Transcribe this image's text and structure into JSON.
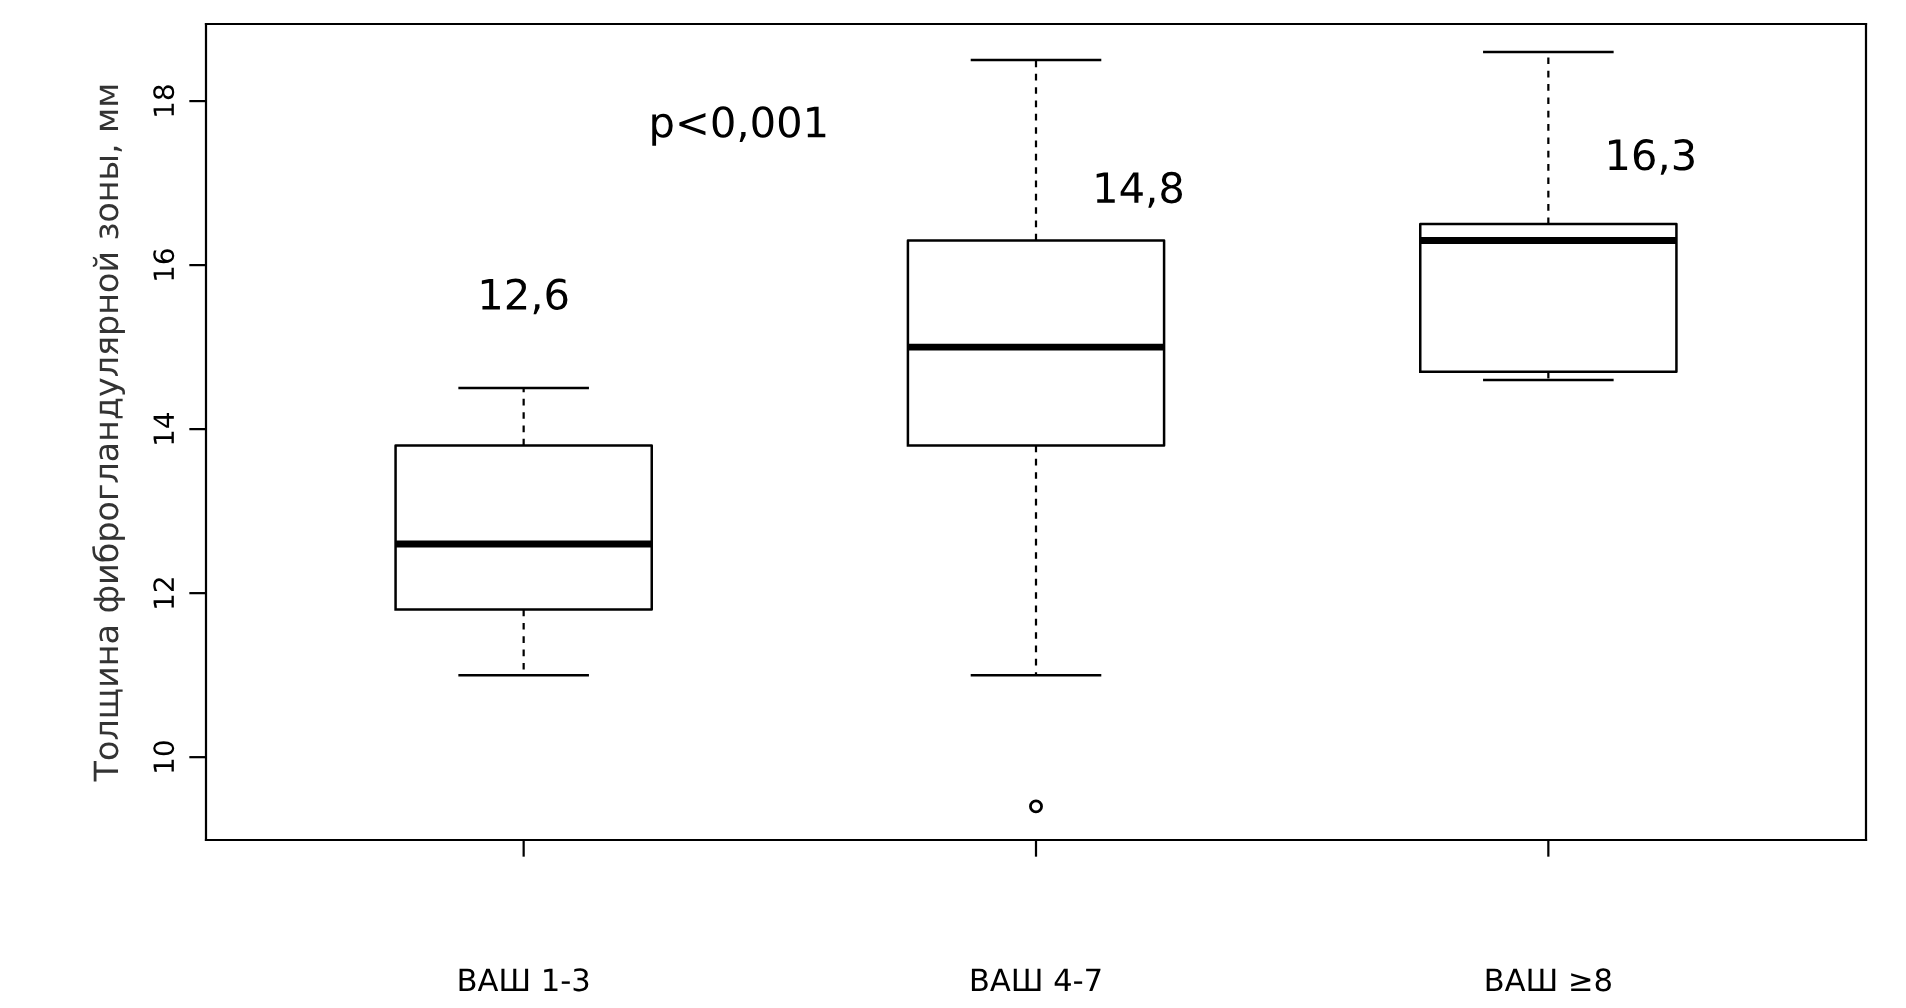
{
  "chart_data": {
    "type": "box",
    "ylabel": "Толщина фиброгландулярной зоны, мм",
    "categories": [
      "ВАШ 1-3",
      "ВАШ 4-7",
      "ВАШ ≥8"
    ],
    "boxes": [
      {
        "low": 11.0,
        "q1": 11.8,
        "median": 12.6,
        "q3": 13.8,
        "high": 14.5
      },
      {
        "low": 11.0,
        "q1": 13.8,
        "median": 15.0,
        "q3": 16.3,
        "high": 18.5,
        "outliers": [
          9.4
        ]
      },
      {
        "low": 14.6,
        "q1": 14.7,
        "median": 16.3,
        "q3": 16.5,
        "high": 18.6
      }
    ],
    "ylim": [
      8.99,
      18.94
    ],
    "yticks": [
      10,
      12,
      14,
      16,
      18
    ],
    "grid": false,
    "legend": false,
    "annotations": [
      "12,6",
      "14,8",
      "16,3",
      "p<0,001"
    ]
  }
}
